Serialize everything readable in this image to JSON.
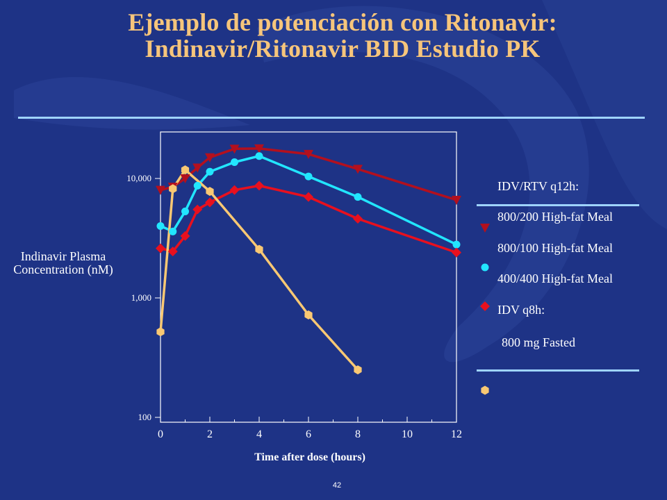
{
  "slide": {
    "title_line1": "Ejemplo de potenciación con Ritonavir:",
    "title_line2": "Indinavir/Ritonavir BID Estudio PK",
    "page_number": "42",
    "colors": {
      "background": "#1e3386",
      "title": "#f6c57b",
      "rule": "#9fd4ff"
    }
  },
  "chart_data": {
    "type": "line",
    "ylabel": "Indinavir Plasma Concentration (nM)",
    "xlabel": "Time after dose (hours)",
    "yscale": "log",
    "ylim": [
      100,
      20000
    ],
    "xlim": [
      0,
      12
    ],
    "x_ticks": [
      "0",
      "2",
      "4",
      "6",
      "8",
      "10",
      "12"
    ],
    "y_ticks": [
      {
        "value": 100,
        "label": "100"
      },
      {
        "value": 1000,
        "label": "1,000"
      },
      {
        "value": 10000,
        "label": "10,000"
      }
    ],
    "legend": {
      "heading": "IDV/RTV q12h:",
      "entries": [
        "800/200 High-fat Meal",
        "800/100 High-fat Meal",
        "400/400 High-fat Meal"
      ],
      "subheading": "IDV q8h:",
      "last_entry": "800 mg Fasted"
    },
    "series": [
      {
        "name": "800/200 High-fat Meal",
        "color": "#b3101e",
        "marker": "triangle-down",
        "x": [
          0,
          0.5,
          1,
          1.5,
          2,
          3,
          4,
          6,
          8,
          12
        ],
        "y": [
          8000,
          8500,
          10000,
          12300,
          15000,
          17700,
          17800,
          16000,
          12000,
          6600
        ]
      },
      {
        "name": "800/100 High-fat Meal",
        "color": "#22e6ff",
        "marker": "circle",
        "x": [
          0,
          0.5,
          1,
          1.5,
          2,
          3,
          4,
          6,
          8,
          12
        ],
        "y": [
          4000,
          3600,
          5300,
          8700,
          11400,
          13700,
          15400,
          10400,
          7000,
          2800
        ]
      },
      {
        "name": "400/400 High-fat Meal",
        "color": "#e8101e",
        "marker": "diamond",
        "x": [
          0,
          0.5,
          1,
          1.5,
          2,
          3,
          4,
          6,
          8,
          12
        ],
        "y": [
          2600,
          2450,
          3300,
          5500,
          6300,
          8000,
          8700,
          7000,
          4600,
          2400
        ]
      },
      {
        "name": "800 mg Fasted",
        "color": "#f9c873",
        "marker": "hexagon",
        "x": [
          0,
          0.5,
          1,
          2,
          4,
          6,
          8
        ],
        "y": [
          520,
          8200,
          11800,
          7800,
          2550,
          720,
          250
        ]
      }
    ]
  }
}
